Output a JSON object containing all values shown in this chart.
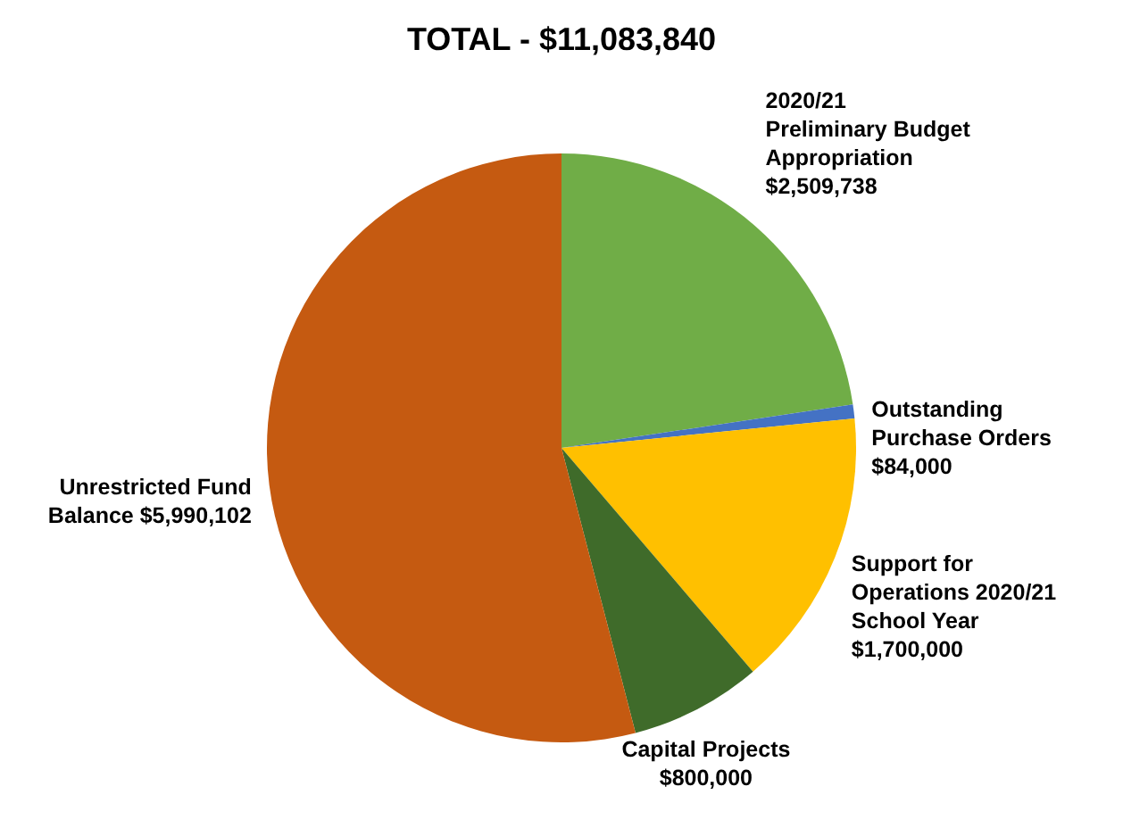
{
  "chart_data": {
    "type": "pie",
    "title": "TOTAL - $11,083,840",
    "categories": [
      "2020/21 Preliminary Budget Appropriation",
      "Outstanding Purchase Orders",
      "Support for Operations 2020/21 School Year",
      "Capital Projects",
      "Unrestricted Fund Balance"
    ],
    "values": [
      2509738,
      84000,
      1700000,
      800000,
      5990102
    ],
    "value_labels": [
      "$2,509,738",
      "$84,000",
      "$1,700,000",
      "$800,000",
      "$5,990,102"
    ],
    "colors": [
      "#70ad47",
      "#4472c4",
      "#ffc000",
      "#3f6b2a",
      "#c55a11"
    ],
    "legend": false
  }
}
